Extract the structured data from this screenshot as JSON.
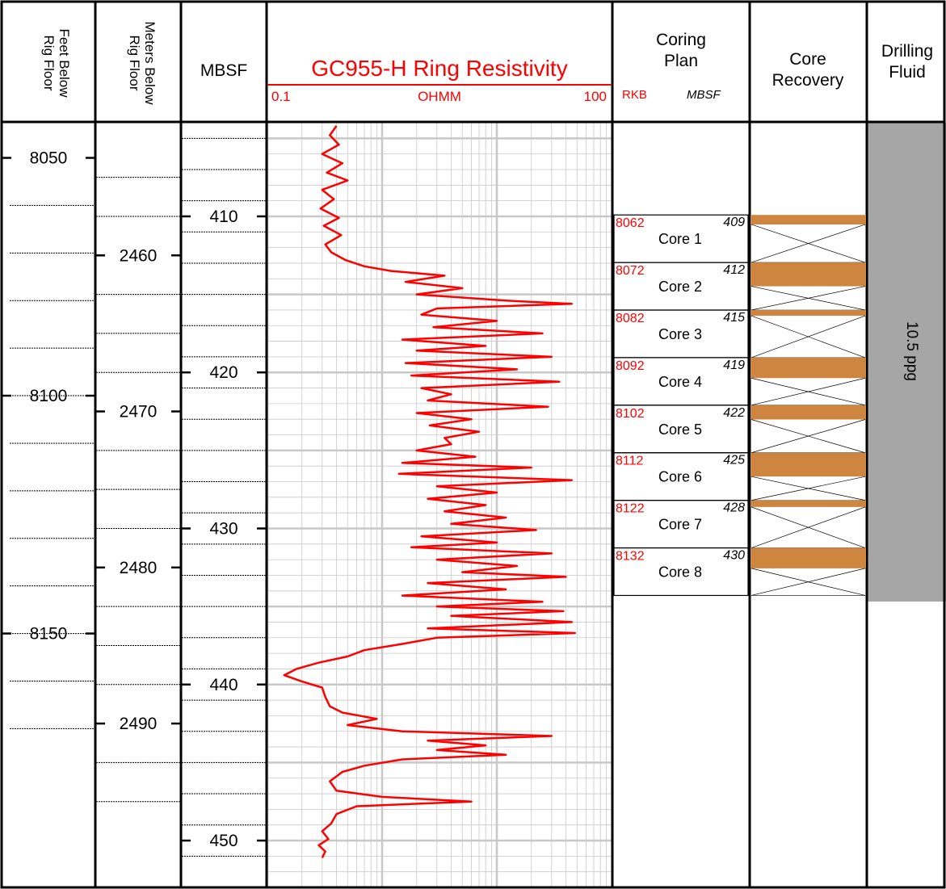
{
  "headers": {
    "feet": [
      "Feet Below",
      "Rig Floor"
    ],
    "meters": [
      "Meters Below",
      "Rig Floor"
    ],
    "mbsf": "MBSF",
    "resistivity_title": "GC955-H Ring Resistivity",
    "resistivity_min": "0.1",
    "resistivity_unit": "OHMM",
    "resistivity_max": "100",
    "coring_plan": [
      "Coring",
      "Plan"
    ],
    "rkb": "RKB",
    "plan_mbsf": "MBSF",
    "core_recovery": [
      "Core",
      "Recovery"
    ],
    "drilling_fluid": [
      "Drilling",
      "Fluid"
    ]
  },
  "colors": {
    "curve": "#ff0000",
    "recovery": "#cd853f",
    "fluid": "#a6a6a6",
    "grid": "#c8c8c8"
  },
  "feet_ticks": [
    "8050",
    "8100",
    "8150"
  ],
  "meters_ticks": [
    "2460",
    "2470",
    "2480",
    "2490"
  ],
  "mbsf_ticks": [
    "410",
    "420",
    "430",
    "440",
    "450"
  ],
  "cores": [
    {
      "rkb": "8062",
      "mbsf": "409",
      "name": "Core 1"
    },
    {
      "rkb": "8072",
      "mbsf": "412",
      "name": "Core 2"
    },
    {
      "rkb": "8082",
      "mbsf": "415",
      "name": "Core 3"
    },
    {
      "rkb": "8092",
      "mbsf": "419",
      "name": "Core 4"
    },
    {
      "rkb": "8102",
      "mbsf": "422",
      "name": "Core 5"
    },
    {
      "rkb": "8112",
      "mbsf": "425",
      "name": "Core 6"
    },
    {
      "rkb": "8122",
      "mbsf": "428",
      "name": "Core 7"
    },
    {
      "rkb": "8132",
      "mbsf": "430",
      "name": "Core 8"
    }
  ],
  "recovery_fraction": [
    0.2,
    0.5,
    0.12,
    0.43,
    0.3,
    0.5,
    0.14,
    0.43
  ],
  "drilling_fluid_value": "10.5 ppg",
  "chart_data": {
    "type": "line",
    "title": "GC955-H Ring Resistivity",
    "xlabel": "OHMM",
    "ylabel": "MBSF",
    "x_scale": "log",
    "xlim": [
      0.1,
      100
    ],
    "ylim": [
      404,
      453
    ],
    "grid": true,
    "series": [
      {
        "name": "GC955-H Ring Resistivity",
        "points": [
          [
            0.4,
            404.2
          ],
          [
            0.35,
            404.8
          ],
          [
            0.42,
            405.4
          ],
          [
            0.3,
            406.0
          ],
          [
            0.45,
            406.6
          ],
          [
            0.33,
            407.2
          ],
          [
            0.5,
            407.7
          ],
          [
            0.3,
            408.3
          ],
          [
            0.38,
            408.9
          ],
          [
            0.29,
            409.5
          ],
          [
            0.42,
            410.1
          ],
          [
            0.31,
            410.6
          ],
          [
            0.44,
            411.2
          ],
          [
            0.32,
            411.8
          ],
          [
            0.36,
            412.3
          ],
          [
            0.48,
            412.8
          ],
          [
            0.7,
            413.2
          ],
          [
            1.2,
            413.5
          ],
          [
            3.5,
            413.8
          ],
          [
            1.6,
            414.2
          ],
          [
            5.0,
            414.6
          ],
          [
            2.0,
            415.0
          ],
          [
            12,
            415.4
          ],
          [
            45,
            415.6
          ],
          [
            3.0,
            415.9
          ],
          [
            2.2,
            416.3
          ],
          [
            10,
            416.7
          ],
          [
            2.8,
            417.1
          ],
          [
            25,
            417.5
          ],
          [
            1.5,
            417.9
          ],
          [
            8.0,
            418.3
          ],
          [
            2.0,
            418.6
          ],
          [
            30,
            419.0
          ],
          [
            1.6,
            419.4
          ],
          [
            15,
            419.8
          ],
          [
            1.8,
            420.2
          ],
          [
            35,
            420.6
          ],
          [
            2.2,
            421.0
          ],
          [
            4.0,
            421.4
          ],
          [
            2.5,
            421.8
          ],
          [
            28,
            422.2
          ],
          [
            2.0,
            422.6
          ],
          [
            6.0,
            423.0
          ],
          [
            2.6,
            423.4
          ],
          [
            7.0,
            423.8
          ],
          [
            3.5,
            424.2
          ],
          [
            4.0,
            424.6
          ],
          [
            2.0,
            425.0
          ],
          [
            6.5,
            425.4
          ],
          [
            1.5,
            425.8
          ],
          [
            20,
            426.1
          ],
          [
            1.4,
            426.5
          ],
          [
            45,
            426.9
          ],
          [
            3.0,
            427.3
          ],
          [
            10,
            427.7
          ],
          [
            2.5,
            428.1
          ],
          [
            8.0,
            428.5
          ],
          [
            3.5,
            428.9
          ],
          [
            12,
            429.3
          ],
          [
            4.0,
            429.7
          ],
          [
            22,
            430.1
          ],
          [
            2.2,
            430.5
          ],
          [
            10,
            430.9
          ],
          [
            1.8,
            431.2
          ],
          [
            30,
            431.6
          ],
          [
            3.0,
            432.0
          ],
          [
            15,
            432.4
          ],
          [
            5.0,
            432.8
          ],
          [
            40,
            433.1
          ],
          [
            2.5,
            433.5
          ],
          [
            12,
            433.9
          ],
          [
            1.5,
            434.3
          ],
          [
            25,
            434.7
          ],
          [
            3.0,
            435.0
          ],
          [
            38,
            435.3
          ],
          [
            4.0,
            435.6
          ],
          [
            45,
            436.0
          ],
          [
            2.5,
            436.4
          ],
          [
            48,
            436.7
          ],
          [
            3.0,
            437.0
          ],
          [
            1.5,
            437.4
          ],
          [
            0.7,
            437.8
          ],
          [
            0.5,
            438.2
          ],
          [
            0.28,
            438.6
          ],
          [
            0.18,
            439.0
          ],
          [
            0.14,
            439.4
          ],
          [
            0.2,
            439.8
          ],
          [
            0.3,
            440.2
          ],
          [
            0.32,
            440.8
          ],
          [
            0.35,
            441.4
          ],
          [
            0.45,
            441.8
          ],
          [
            0.9,
            442.2
          ],
          [
            0.5,
            442.6
          ],
          [
            1.5,
            443.0
          ],
          [
            30,
            443.3
          ],
          [
            2.5,
            443.6
          ],
          [
            8.0,
            443.9
          ],
          [
            3.0,
            444.2
          ],
          [
            12,
            444.5
          ],
          [
            1.5,
            444.8
          ],
          [
            0.7,
            445.2
          ],
          [
            0.45,
            445.6
          ],
          [
            0.35,
            446.2
          ],
          [
            0.4,
            446.8
          ],
          [
            1.0,
            447.2
          ],
          [
            6.0,
            447.5
          ],
          [
            0.6,
            447.8
          ],
          [
            0.4,
            448.3
          ],
          [
            0.36,
            448.9
          ],
          [
            0.3,
            449.4
          ],
          [
            0.34,
            449.9
          ],
          [
            0.28,
            450.3
          ],
          [
            0.32,
            450.7
          ],
          [
            0.3,
            451.1
          ]
        ]
      }
    ]
  }
}
